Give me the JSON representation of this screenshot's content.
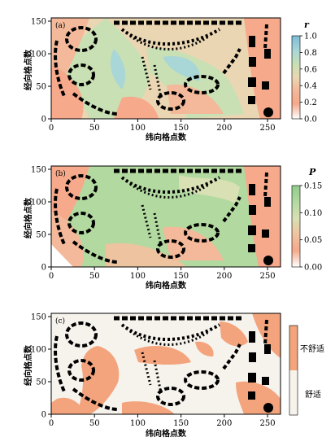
{
  "chart_data": [
    {
      "type": "heatmap",
      "panel_label": "(a)",
      "xlabel": "纬向格点数",
      "ylabel": "经向格点数",
      "x_ticks": [
        "0",
        "50",
        "100",
        "150",
        "200",
        "250"
      ],
      "y_ticks": [
        "0",
        "50",
        "100",
        "150"
      ],
      "xlim": [
        0,
        265
      ],
      "ylim": [
        0,
        155
      ],
      "colorbar": {
        "title": "r",
        "ticks": [
          "0.0",
          "0.2",
          "0.4",
          "0.6",
          "0.8",
          "1.0"
        ],
        "range": [
          0,
          1
        ],
        "colors": [
          "#ffffff",
          "#f6a98b",
          "#ead6b2",
          "#c9e0b4",
          "#a9d6d6",
          "#7cbcd8"
        ]
      }
    },
    {
      "type": "heatmap",
      "panel_label": "(b)",
      "xlabel": "纬向格点数",
      "ylabel": "经向格点数",
      "x_ticks": [
        "0",
        "50",
        "100",
        "150",
        "200",
        "250"
      ],
      "y_ticks": [
        "0",
        "50",
        "100",
        "150"
      ],
      "xlim": [
        0,
        265
      ],
      "ylim": [
        0,
        155
      ],
      "colorbar": {
        "title": "P",
        "ticks": [
          "0.00",
          "0.05",
          "0.10",
          "0.15"
        ],
        "range": [
          0,
          0.15
        ],
        "colors": [
          "#ffffff",
          "#f6a98b",
          "#d8e0b4",
          "#b2d9a0",
          "#8fcc8a"
        ]
      }
    },
    {
      "type": "heatmap",
      "panel_label": "(c)",
      "xlabel": "纬向格点数",
      "ylabel": "经向格点数",
      "x_ticks": [
        "0",
        "50",
        "100",
        "150",
        "200",
        "250"
      ],
      "y_ticks": [
        "0",
        "50",
        "100",
        "150"
      ],
      "xlim": [
        0,
        265
      ],
      "ylim": [
        0,
        155
      ],
      "categories": [
        "不舒适",
        "舒适"
      ],
      "category_colors": [
        "#f3a47c",
        "#f6f2ec"
      ]
    }
  ]
}
